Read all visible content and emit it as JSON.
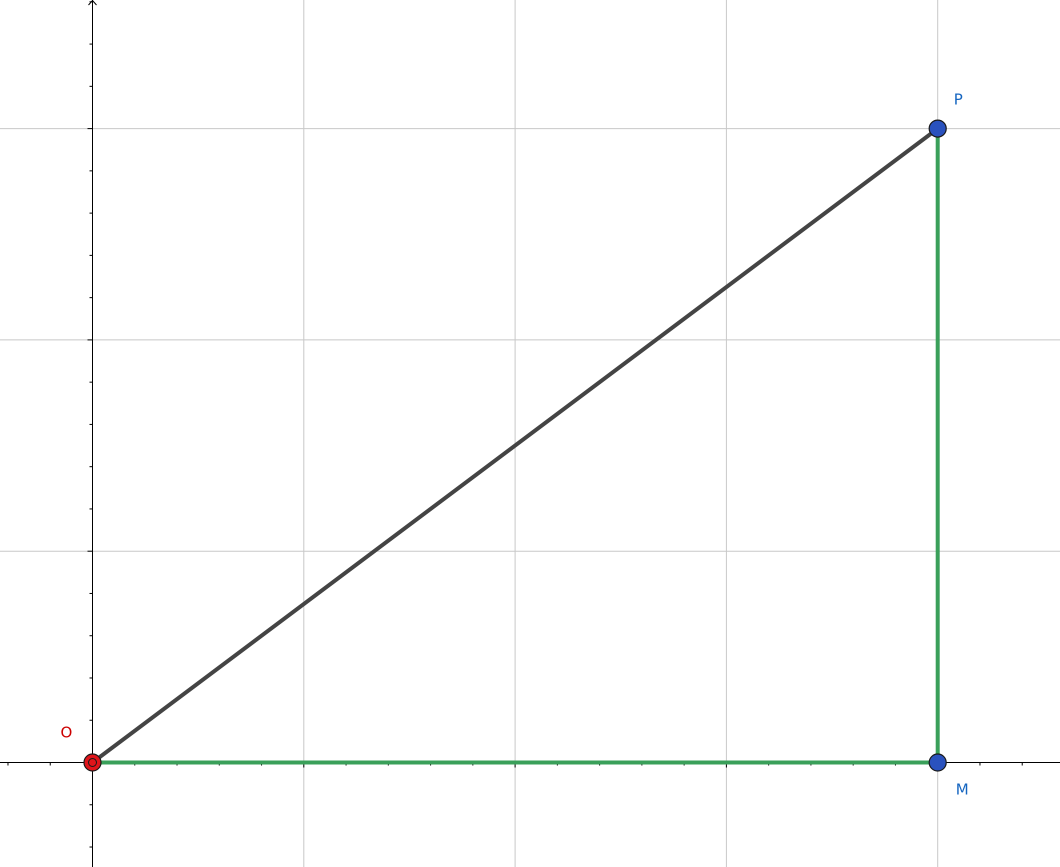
{
  "points": {
    "O": {
      "label": "O",
      "color": "#cc0000",
      "fill": "#e0151b"
    },
    "P": {
      "label": "P",
      "color": "#1565c0",
      "fill": "#2a52be"
    },
    "M": {
      "label": "M",
      "color": "#1565c0",
      "fill": "#2a52be"
    }
  },
  "segments": {
    "hypotenuse": {
      "from": "O",
      "to": "P",
      "color": "#444444"
    },
    "leg_horizontal": {
      "from": "O",
      "to": "M",
      "color": "#3aa05a"
    },
    "leg_vertical": {
      "from": "M",
      "to": "P",
      "color": "#3aa05a"
    }
  },
  "grid": {
    "visible": true,
    "line_color": "#c8c8c8",
    "axis_color": "#000000"
  }
}
